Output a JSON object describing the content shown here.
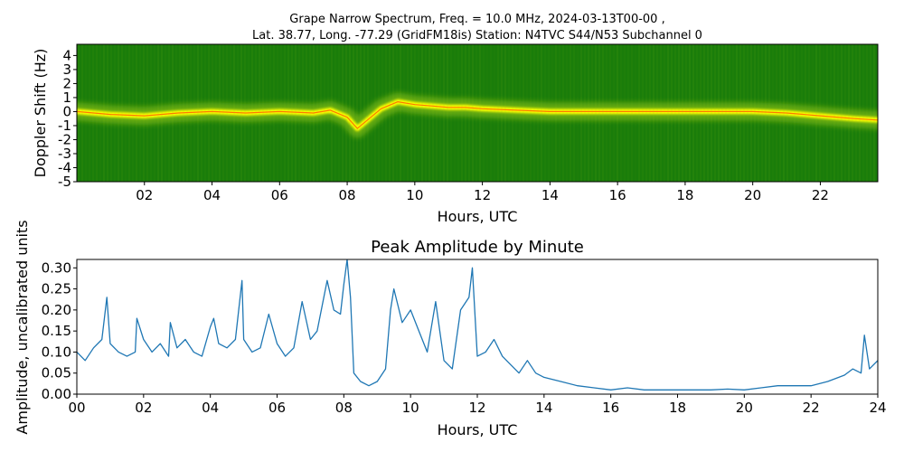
{
  "figure": {
    "suptitle_line1": "Grape Narrow Spectrum, Freq. = 10.0 MHz, 2024-03-13T00-00 ,",
    "suptitle_line2": "Lat.  38.77, Long. -77.29 (GridFM18is) Station: N4TVC S44/N53 Subchannel 0"
  },
  "colors": {
    "spectrogram_background": "#1a7d0a",
    "spectrogram_mid": "#9ccc1a",
    "spectrogram_high": "#ffff00",
    "spectrogram_peak": "#ff2000",
    "line_series": "#1f77b4"
  },
  "chart_data": [
    {
      "type": "heatmap",
      "title": "",
      "xlabel": "Hours, UTC",
      "ylabel": "Doppler Shift (Hz)",
      "xlim": [
        0,
        23.7
      ],
      "ylim": [
        -5,
        4.8
      ],
      "x_ticks": [
        2,
        4,
        6,
        8,
        10,
        12,
        14,
        16,
        18,
        20,
        22
      ],
      "x_tick_labels": [
        "02",
        "04",
        "06",
        "08",
        "10",
        "12",
        "14",
        "16",
        "18",
        "20",
        "22"
      ],
      "y_ticks": [
        4,
        3,
        2,
        1,
        0,
        -1,
        -2,
        -3,
        -4,
        -5
      ],
      "y_tick_labels": [
        "4",
        "3",
        "2",
        "1",
        "0",
        "-1",
        "-2",
        "-3",
        "-4",
        "-5"
      ],
      "doppler_trace": {
        "x": [
          0,
          1,
          2,
          3,
          4,
          5,
          6,
          7,
          7.5,
          8,
          8.3,
          9,
          9.5,
          10,
          10.5,
          11,
          11.5,
          12,
          13,
          14,
          15,
          16,
          17,
          18,
          19,
          20,
          21,
          22,
          23,
          23.7
        ],
        "y": [
          0,
          -0.2,
          -0.3,
          -0.1,
          0,
          -0.1,
          0,
          -0.1,
          0.1,
          -0.4,
          -1.2,
          0.2,
          0.7,
          0.5,
          0.4,
          0.3,
          0.3,
          0.2,
          0.1,
          0,
          0,
          0,
          0,
          0,
          0,
          0,
          -0.1,
          -0.3,
          -0.5,
          -0.6
        ]
      },
      "grid": false,
      "legend": "none"
    },
    {
      "type": "line",
      "title": "Peak Amplitude by Minute",
      "xlabel": "Hours, UTC",
      "ylabel": "Amplitude, uncalibrated units",
      "xlim": [
        0,
        24
      ],
      "ylim": [
        0,
        0.32
      ],
      "x_ticks": [
        0,
        2,
        4,
        6,
        8,
        10,
        12,
        14,
        16,
        18,
        20,
        22,
        24
      ],
      "x_tick_labels": [
        "00",
        "02",
        "04",
        "06",
        "08",
        "10",
        "12",
        "14",
        "16",
        "18",
        "20",
        "22",
        "24"
      ],
      "y_ticks": [
        0,
        0.05,
        0.1,
        0.15,
        0.2,
        0.25,
        0.3
      ],
      "y_tick_labels": [
        "0.00",
        "0.05",
        "0.10",
        "0.15",
        "0.20",
        "0.25",
        "0.30"
      ],
      "grid": false,
      "legend": "none",
      "series": [
        {
          "x": [
            0,
            0.25,
            0.5,
            0.75,
            0.9,
            1,
            1.25,
            1.5,
            1.75,
            1.8,
            2,
            2.25,
            2.5,
            2.75,
            2.8,
            3,
            3.25,
            3.5,
            3.75,
            4,
            4.1,
            4.25,
            4.5,
            4.75,
            4.95,
            5,
            5.25,
            5.5,
            5.75,
            6,
            6.25,
            6.5,
            6.75,
            7,
            7.2,
            7.5,
            7.7,
            7.9,
            8,
            8.1,
            8.2,
            8.3,
            8.5,
            8.75,
            9,
            9.25,
            9.4,
            9.5,
            9.75,
            10,
            10.25,
            10.5,
            10.75,
            11,
            11.25,
            11.5,
            11.75,
            11.85,
            12,
            12.25,
            12.5,
            12.75,
            13,
            13.25,
            13.5,
            13.75,
            14,
            14.5,
            15,
            15.5,
            16,
            16.5,
            17,
            17.5,
            18,
            18.5,
            19,
            19.5,
            20,
            20.5,
            21,
            21.5,
            22,
            22.5,
            23,
            23.25,
            23.5,
            23.6,
            23.75,
            24
          ],
          "y": [
            0.1,
            0.08,
            0.11,
            0.13,
            0.23,
            0.12,
            0.1,
            0.09,
            0.1,
            0.18,
            0.13,
            0.1,
            0.12,
            0.09,
            0.17,
            0.11,
            0.13,
            0.1,
            0.09,
            0.16,
            0.18,
            0.12,
            0.11,
            0.13,
            0.27,
            0.13,
            0.1,
            0.11,
            0.19,
            0.12,
            0.09,
            0.11,
            0.22,
            0.13,
            0.15,
            0.27,
            0.2,
            0.19,
            0.26,
            0.32,
            0.23,
            0.05,
            0.03,
            0.02,
            0.03,
            0.06,
            0.2,
            0.25,
            0.17,
            0.2,
            0.15,
            0.1,
            0.22,
            0.08,
            0.06,
            0.2,
            0.23,
            0.3,
            0.09,
            0.1,
            0.13,
            0.09,
            0.07,
            0.05,
            0.08,
            0.05,
            0.04,
            0.03,
            0.02,
            0.015,
            0.01,
            0.015,
            0.01,
            0.01,
            0.01,
            0.01,
            0.01,
            0.012,
            0.01,
            0.015,
            0.02,
            0.02,
            0.02,
            0.03,
            0.045,
            0.06,
            0.05,
            0.14,
            0.06,
            0.08
          ]
        }
      ]
    }
  ]
}
